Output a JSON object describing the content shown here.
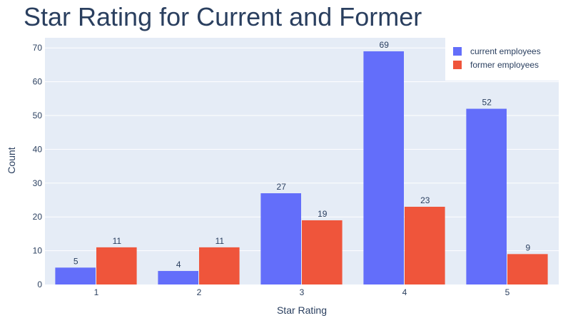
{
  "chart_data": {
    "type": "bar",
    "title": "Star Rating for Current and Former",
    "xlabel": "Star Rating",
    "ylabel": "Count",
    "categories": [
      "1",
      "2",
      "3",
      "4",
      "5"
    ],
    "ylim": [
      0,
      73
    ],
    "yticks": [
      0,
      10,
      20,
      30,
      40,
      50,
      60,
      70
    ],
    "grid": true,
    "legend_position": "top-right",
    "series": [
      {
        "name": "current employees",
        "color": "#636efa",
        "values": [
          5,
          4,
          27,
          69,
          52
        ]
      },
      {
        "name": "former employees",
        "color": "#ef553b",
        "values": [
          11,
          11,
          19,
          23,
          9
        ]
      }
    ],
    "plot_background": "#e5ecf6"
  }
}
